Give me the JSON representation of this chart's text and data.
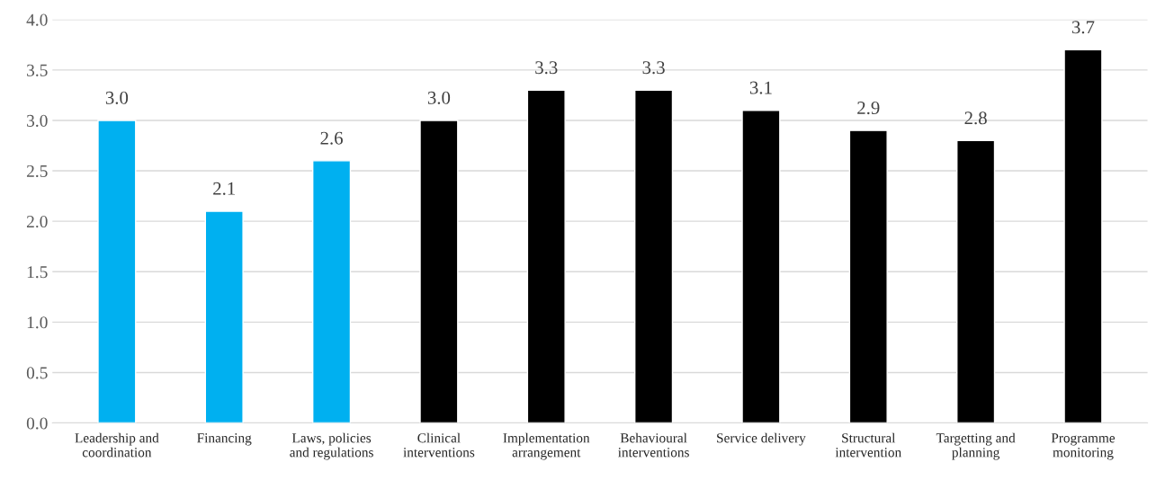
{
  "chart_data": {
    "type": "bar",
    "categories": [
      "Leadership and\ncoordination",
      "Financing",
      "Laws, policies\nand regulations",
      "Clinical\ninterventions",
      "Implementation\narrangement",
      "Behavioural\ninterventions",
      "Service delivery",
      "Structural\nintervention",
      "Targetting and\nplanning",
      "Programme\nmonitoring"
    ],
    "values": [
      3.0,
      2.1,
      2.6,
      3.0,
      3.3,
      3.3,
      3.1,
      2.9,
      2.8,
      3.7
    ],
    "colors": [
      "#00b0f0",
      "#00b0f0",
      "#00b0f0",
      "#000000",
      "#000000",
      "#000000",
      "#000000",
      "#000000",
      "#000000",
      "#000000"
    ],
    "value_labels": [
      "3.0",
      "2.1",
      "2.6",
      "3.0",
      "3.3",
      "3.3",
      "3.1",
      "2.9",
      "2.8",
      "3.7"
    ],
    "ylim": [
      0,
      4
    ],
    "yticks": [
      {
        "value": 0,
        "label": "0.0"
      },
      {
        "value": 0.5,
        "label": "0.5"
      },
      {
        "value": 1,
        "label": "1.0"
      },
      {
        "value": 1.5,
        "label": "1.5"
      },
      {
        "value": 2,
        "label": "2.0"
      },
      {
        "value": 2.5,
        "label": "2.5"
      },
      {
        "value": 3,
        "label": "3.0"
      },
      {
        "value": 3.5,
        "label": "3.5"
      },
      {
        "value": 4,
        "label": "4.0"
      }
    ],
    "grid": "y",
    "legend": false
  }
}
